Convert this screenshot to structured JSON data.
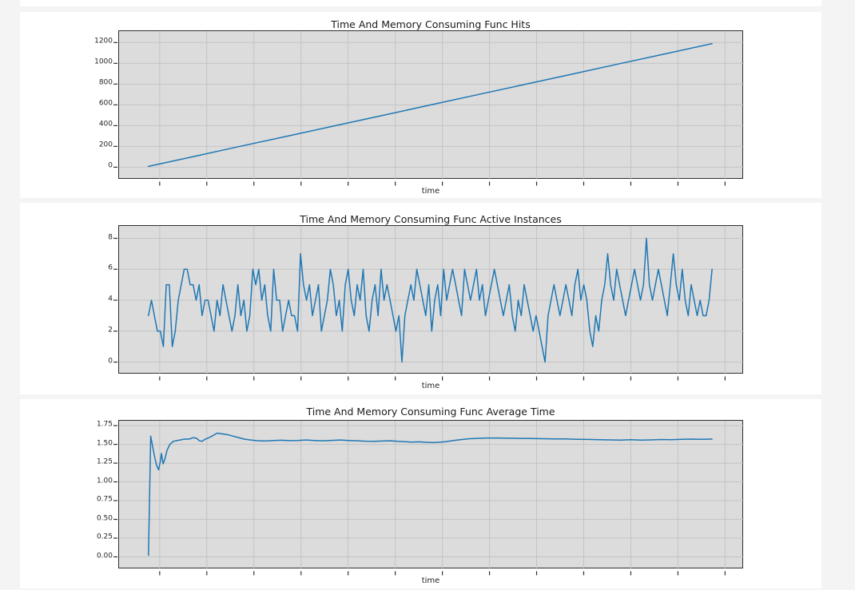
{
  "page": {
    "background": "#f4f4f5",
    "card_background": "#ffffff"
  },
  "style": {
    "plot_bg": "#dcdcdc",
    "grid_color": "#c4c4c4",
    "spine_color": "#2f2f2f",
    "line_color": "#1f77b4",
    "tick_label_color": "#262626",
    "title_color": "#1a1a1a"
  },
  "top_partial_chart": {
    "xlabel": "time"
  },
  "x_axis": {
    "count": 13,
    "first_frac": 0.065,
    "step_frac": 0.0754
  },
  "data_x_range": [
    0.047,
    0.949
  ],
  "chart_data": [
    {
      "type": "line",
      "title": "Time And Memory Consuming Func Hits",
      "xlabel": "time",
      "legend": null,
      "grid": true,
      "yticks": [
        0,
        200,
        400,
        600,
        800,
        1000,
        1200
      ],
      "ytick_labels": [
        "0",
        "200",
        "400",
        "600",
        "800",
        "1000",
        "1200"
      ],
      "ylim": [
        -120,
        1310
      ],
      "values": [
        8,
        106,
        205,
        303,
        402,
        500,
        599,
        697,
        796,
        894,
        993,
        1091,
        1190
      ]
    },
    {
      "type": "line",
      "title": "Time And Memory Consuming Func Active Instances",
      "xlabel": "time",
      "legend": null,
      "grid": true,
      "yticks": [
        0,
        2,
        4,
        6,
        8
      ],
      "ytick_labels": [
        "0",
        "2",
        "4",
        "6",
        "8"
      ],
      "ylim": [
        -0.8,
        8.8
      ],
      "values": [
        3,
        4,
        3,
        2,
        2,
        1,
        5,
        5,
        1,
        2,
        4,
        5,
        6,
        6,
        5,
        5,
        4,
        5,
        3,
        4,
        4,
        3,
        2,
        4,
        3,
        5,
        4,
        3,
        2,
        3,
        5,
        3,
        4,
        2,
        3,
        6,
        5,
        6,
        4,
        5,
        3,
        2,
        6,
        4,
        4,
        2,
        3,
        4,
        3,
        3,
        2,
        7,
        5,
        4,
        5,
        3,
        4,
        5,
        2,
        3,
        4,
        6,
        5,
        3,
        4,
        2,
        5,
        6,
        4,
        3,
        5,
        4,
        6,
        3,
        2,
        4,
        5,
        3,
        6,
        4,
        5,
        4,
        3,
        2,
        3,
        0,
        3,
        4,
        5,
        4,
        6,
        5,
        4,
        3,
        5,
        2,
        4,
        5,
        3,
        6,
        4,
        5,
        6,
        5,
        4,
        3,
        6,
        5,
        4,
        5,
        6,
        4,
        5,
        3,
        4,
        5,
        6,
        5,
        4,
        3,
        4,
        5,
        3,
        2,
        4,
        3,
        5,
        4,
        3,
        2,
        3,
        2,
        1,
        0,
        3,
        4,
        5,
        4,
        3,
        4,
        5,
        4,
        3,
        5,
        6,
        4,
        5,
        4,
        2,
        1,
        3,
        2,
        4,
        5,
        7,
        5,
        4,
        6,
        5,
        4,
        3,
        4,
        5,
        6,
        5,
        4,
        5,
        8,
        5,
        4,
        5,
        6,
        5,
        4,
        3,
        5,
        7,
        5,
        4,
        6,
        4,
        3,
        5,
        4,
        3,
        4,
        3,
        3,
        4,
        6
      ]
    },
    {
      "type": "line",
      "title": "Time And Memory Consuming Func Average Time",
      "xlabel": "time",
      "legend": null,
      "grid": true,
      "yticks": [
        0,
        0.25,
        0.5,
        0.75,
        1.0,
        1.25,
        1.5,
        1.75
      ],
      "ytick_labels": [
        "0.00",
        "0.25",
        "0.50",
        "0.75",
        "1.00",
        "1.25",
        "1.50",
        "1.75"
      ],
      "ylim": [
        -0.165,
        1.815
      ],
      "points": [
        [
          0.0,
          0.02
        ],
        [
          0.004,
          1.61
        ],
        [
          0.008,
          1.45
        ],
        [
          0.012,
          1.3
        ],
        [
          0.015,
          1.21
        ],
        [
          0.018,
          1.16
        ],
        [
          0.021,
          1.27
        ],
        [
          0.023,
          1.38
        ],
        [
          0.026,
          1.24
        ],
        [
          0.029,
          1.3
        ],
        [
          0.033,
          1.42
        ],
        [
          0.038,
          1.5
        ],
        [
          0.044,
          1.54
        ],
        [
          0.05,
          1.55
        ],
        [
          0.057,
          1.56
        ],
        [
          0.064,
          1.57
        ],
        [
          0.072,
          1.57
        ],
        [
          0.08,
          1.59
        ],
        [
          0.086,
          1.58
        ],
        [
          0.09,
          1.55
        ],
        [
          0.095,
          1.54
        ],
        [
          0.101,
          1.57
        ],
        [
          0.108,
          1.59
        ],
        [
          0.115,
          1.62
        ],
        [
          0.122,
          1.65
        ],
        [
          0.13,
          1.64
        ],
        [
          0.14,
          1.63
        ],
        [
          0.15,
          1.61
        ],
        [
          0.16,
          1.59
        ],
        [
          0.17,
          1.57
        ],
        [
          0.18,
          1.56
        ],
        [
          0.192,
          1.55
        ],
        [
          0.205,
          1.545
        ],
        [
          0.22,
          1.55
        ],
        [
          0.235,
          1.555
        ],
        [
          0.25,
          1.55
        ],
        [
          0.265,
          1.552
        ],
        [
          0.28,
          1.558
        ],
        [
          0.295,
          1.552
        ],
        [
          0.31,
          1.548
        ],
        [
          0.325,
          1.553
        ],
        [
          0.34,
          1.558
        ],
        [
          0.355,
          1.552
        ],
        [
          0.37,
          1.548
        ],
        [
          0.385,
          1.543
        ],
        [
          0.4,
          1.54
        ],
        [
          0.415,
          1.545
        ],
        [
          0.43,
          1.548
        ],
        [
          0.442,
          1.54
        ],
        [
          0.455,
          1.535
        ],
        [
          0.468,
          1.53
        ],
        [
          0.48,
          1.534
        ],
        [
          0.492,
          1.528
        ],
        [
          0.505,
          1.523
        ],
        [
          0.515,
          1.528
        ],
        [
          0.527,
          1.535
        ],
        [
          0.54,
          1.55
        ],
        [
          0.553,
          1.563
        ],
        [
          0.567,
          1.574
        ],
        [
          0.582,
          1.58
        ],
        [
          0.6,
          1.585
        ],
        [
          0.62,
          1.585
        ],
        [
          0.64,
          1.582
        ],
        [
          0.66,
          1.58
        ],
        [
          0.68,
          1.578
        ],
        [
          0.7,
          1.576
        ],
        [
          0.72,
          1.573
        ],
        [
          0.74,
          1.572
        ],
        [
          0.76,
          1.568
        ],
        [
          0.78,
          1.566
        ],
        [
          0.8,
          1.562
        ],
        [
          0.82,
          1.56
        ],
        [
          0.838,
          1.556
        ],
        [
          0.856,
          1.562
        ],
        [
          0.874,
          1.556
        ],
        [
          0.892,
          1.56
        ],
        [
          0.91,
          1.565
        ],
        [
          0.928,
          1.563
        ],
        [
          0.946,
          1.568
        ],
        [
          0.964,
          1.57
        ],
        [
          0.982,
          1.568
        ],
        [
          1.0,
          1.57
        ]
      ]
    }
  ]
}
